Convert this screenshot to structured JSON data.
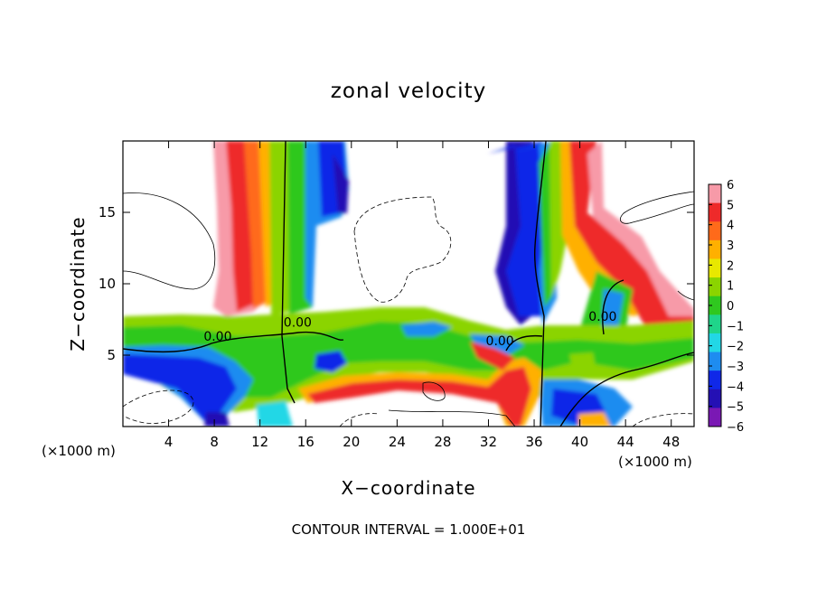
{
  "chart_data": {
    "type": "heatmap",
    "title": "zonal velocity",
    "xlabel": "X−coordinate",
    "ylabel": "Z−coordinate",
    "x_unit_left": "(×1000 m)",
    "x_unit_right": "(×1000 m)",
    "xlim": [
      0,
      50
    ],
    "ylim": [
      0,
      20
    ],
    "x_ticks": [
      4,
      8,
      12,
      16,
      20,
      24,
      28,
      32,
      36,
      40,
      44,
      48
    ],
    "y_ticks": [
      5,
      10,
      15
    ],
    "grid": false,
    "colorbar": {
      "position": "right",
      "ticks": [
        "6",
        "5",
        "4",
        "3",
        "2",
        "1",
        "0",
        "−1",
        "−2",
        "−3",
        "−4",
        "−5",
        "−6"
      ],
      "range": [
        -6,
        6
      ]
    },
    "contour_labels": [
      {
        "text": "0.00",
        "x": 8.3,
        "y": 6.0
      },
      {
        "text": "0.00",
        "x": 15.3,
        "y": 7.0
      },
      {
        "text": "0.00",
        "x": 33.0,
        "y": 5.7
      },
      {
        "text": "0.00",
        "x": 42.0,
        "y": 7.4
      }
    ],
    "footer": "CONTOUR INTERVAL = 1.000E+01"
  },
  "colors": {
    "scale": [
      "#f79aa8",
      "#ee2a2a",
      "#ff6a1a",
      "#ffb000",
      "#e8e800",
      "#8bd400",
      "#2fc81f",
      "#1fd58a",
      "#22d7e6",
      "#1e8cf0",
      "#1028e8",
      "#2410b4",
      "#7a18b4"
    ],
    "frame": "#000000",
    "background": "#ffffff"
  }
}
